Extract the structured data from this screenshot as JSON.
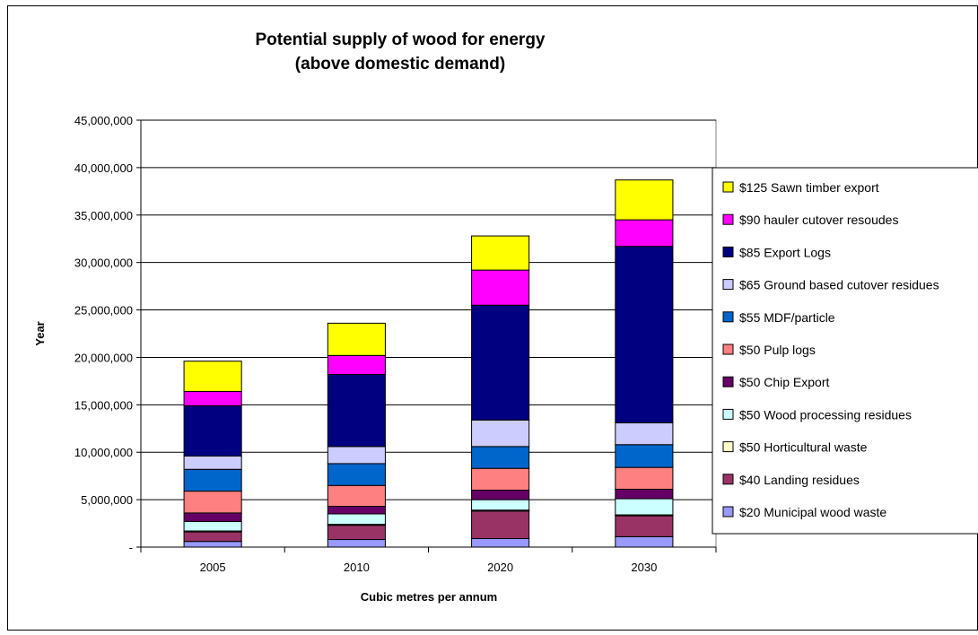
{
  "chart_data": {
    "type": "bar",
    "stacked": true,
    "title": "Potential supply of wood for energy",
    "subtitle": "(above domestic demand)",
    "xlabel": "Cubic metres per annum",
    "ylabel": "Year",
    "categories": [
      "2005",
      "2010",
      "2020",
      "2030"
    ],
    "ylim": [
      0,
      45000000
    ],
    "yticks": [
      0,
      5000000,
      10000000,
      15000000,
      20000000,
      25000000,
      30000000,
      35000000,
      40000000,
      45000000
    ],
    "ytick_labels": [
      "-",
      "5,000,000",
      "10,000,000",
      "15,000,000",
      "20,000,000",
      "25,000,000",
      "30,000,000",
      "35,000,000",
      "40,000,000",
      "45,000,000"
    ],
    "grid": "horizontal",
    "legend_position": "right",
    "series": [
      {
        "name": "$20 Municipal wood waste",
        "color": "#9999FF",
        "values": [
          600000,
          800000,
          900000,
          1100000
        ]
      },
      {
        "name": "$40 Landing residues",
        "color": "#993366",
        "values": [
          1000000,
          1500000,
          2900000,
          2200000
        ]
      },
      {
        "name": "$50 Horticultural waste",
        "color": "#FFFFCC",
        "values": [
          100000,
          100000,
          100000,
          100000
        ]
      },
      {
        "name": "$50 Wood processing residues",
        "color": "#CCFFFF",
        "values": [
          1000000,
          1100000,
          1100000,
          1700000
        ]
      },
      {
        "name": "$50 Chip Export",
        "color": "#660066",
        "values": [
          900000,
          800000,
          1000000,
          1000000
        ]
      },
      {
        "name": "$50 Pulp logs",
        "color": "#FF8080",
        "values": [
          2300000,
          2200000,
          2300000,
          2300000
        ]
      },
      {
        "name": "$55 MDF/particle",
        "color": "#0066CC",
        "values": [
          2300000,
          2300000,
          2300000,
          2400000
        ]
      },
      {
        "name": "$65 Ground based cutover residues",
        "color": "#CCCCFF",
        "values": [
          1400000,
          1800000,
          2800000,
          2300000
        ]
      },
      {
        "name": "$85 Export Logs",
        "color": "#000080",
        "values": [
          5300000,
          7600000,
          12100000,
          18600000
        ]
      },
      {
        "name": "$90 hauler cutover resoudes",
        "color": "#FF00FF",
        "values": [
          1500000,
          2000000,
          3700000,
          2800000
        ]
      },
      {
        "name": "$125 Sawn timber export",
        "color": "#FFFF00",
        "values": [
          3200000,
          3400000,
          3600000,
          4200000
        ]
      }
    ]
  }
}
